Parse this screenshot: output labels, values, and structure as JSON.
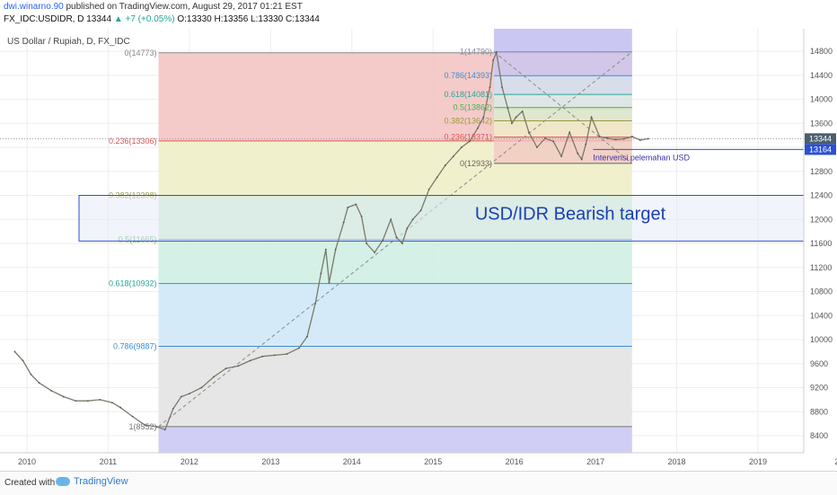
{
  "header": {
    "author": "dwi.winarno.90",
    "published": "published on TradingView.com, August 29, 2017 01:21 EST",
    "symbol_line_prefix": "FX_IDC:USDIDR, D  13344",
    "change": "▲ +7 (+0.05%)",
    "ohlc": "O:13330 H:13356 L:13330 C:13344"
  },
  "footer": {
    "created_with": "Created with",
    "brand": "TradingView"
  },
  "colors": {
    "zone_0_0236": "#f3c5c3",
    "zone_0236_0382": "#eef0c6",
    "zone_0382_05": "#c9ecc9",
    "zone_05_0618": "#cfeee4",
    "zone_0618_0786": "#cfe8f7",
    "zone_0786_1": "#e3e3e3",
    "zone_below": "#cbc9f3",
    "target_box": "#e7ebfa",
    "target_text": "#1a3fb5",
    "price_line": "#7a7a6a",
    "last_price_badge": "#4a5e6e",
    "retr_1_top_zone": "#c7c5f2"
  },
  "chart_data": {
    "type": "line",
    "title": "US Dollar / Rupiah, D, FX_IDC",
    "ylim": [
      8200,
      15000
    ],
    "y_ticks": [
      8400,
      8800,
      9200,
      9600,
      10000,
      10400,
      10800,
      11200,
      11600,
      12000,
      12400,
      12800,
      13200,
      13600,
      14000,
      14400,
      14800
    ],
    "x_ticks": [
      "2010",
      "2011",
      "2012",
      "2013",
      "2014",
      "2015",
      "2016",
      "2017",
      "2018",
      "2019",
      "20"
    ],
    "last_price": 13344,
    "intervention_price": 13164,
    "series": [
      {
        "x": [
          2009.85,
          2009.95,
          2010.05,
          2010.15,
          2010.3,
          2010.45,
          2010.6,
          2010.75,
          2010.9,
          2011.05,
          2011.15,
          2011.3,
          2011.45,
          2011.6,
          2011.7,
          2011.8,
          2011.9,
          2012.0,
          2012.15,
          2012.3,
          2012.45,
          2012.6,
          2012.75,
          2012.9,
          2013.05,
          2013.2,
          2013.35,
          2013.45,
          2013.55,
          2013.62,
          2013.68,
          2013.72,
          2013.8,
          2013.9,
          2013.95,
          2014.05,
          2014.12,
          2014.18,
          2014.28,
          2014.38,
          2014.48,
          2014.55,
          2014.62,
          2014.68,
          2014.75,
          2014.85,
          2014.95,
          2015.05,
          2015.15,
          2015.25,
          2015.35,
          2015.45,
          2015.55,
          2015.62,
          2015.7,
          2015.74,
          2015.78,
          2015.85,
          2015.92,
          2015.97,
          2016.02,
          2016.1,
          2016.18,
          2016.28,
          2016.38,
          2016.48,
          2016.58,
          2016.68,
          2016.78,
          2016.83,
          2016.88,
          2016.95,
          2017.05,
          2017.15,
          2017.25,
          2017.35,
          2017.45,
          2017.55,
          2017.65
        ],
        "y": [
          9800,
          9650,
          9420,
          9280,
          9150,
          9050,
          8980,
          8980,
          9000,
          8950,
          8870,
          8720,
          8580,
          8550,
          8500,
          8850,
          9050,
          9100,
          9200,
          9380,
          9520,
          9560,
          9650,
          9720,
          9740,
          9760,
          9860,
          10050,
          10600,
          11100,
          11500,
          10950,
          11500,
          11950,
          12200,
          12250,
          12050,
          11600,
          11450,
          11650,
          12000,
          11700,
          11600,
          11850,
          12000,
          12150,
          12500,
          12700,
          12900,
          13050,
          13200,
          13300,
          13520,
          13700,
          14200,
          14650,
          14780,
          14200,
          13850,
          13600,
          13700,
          13800,
          13450,
          13200,
          13350,
          13300,
          13050,
          13450,
          13100,
          13000,
          13250,
          13700,
          13380,
          13350,
          13330,
          13340,
          13380,
          13320,
          13344
        ]
      }
    ],
    "fib_levels": [
      {
        "ratio": "0",
        "value": 14773,
        "label": "0(14773)"
      },
      {
        "ratio": "0.236",
        "value": 13306,
        "label": "0.236(13306)"
      },
      {
        "ratio": "0.382",
        "value": 12398,
        "label": "0.382(12398)"
      },
      {
        "ratio": "0.5",
        "value": 11665,
        "label": "0.5(11665)"
      },
      {
        "ratio": "0.618",
        "value": 10932,
        "label": "0.618(10932)"
      },
      {
        "ratio": "0.786",
        "value": 9887,
        "label": "0.786(9887)"
      },
      {
        "ratio": "1",
        "value": 8552,
        "label": "1(8552)"
      }
    ],
    "fib_levels_2": [
      {
        "ratio": "1",
        "value": 14790,
        "label": "1(14790)"
      },
      {
        "ratio": "0.786",
        "value": 14393,
        "label": "0.786(14393)"
      },
      {
        "ratio": "0.618",
        "value": 14081,
        "label": "0.618(14081)"
      },
      {
        "ratio": "0.5",
        "value": 13862,
        "label": "0.5(13862)"
      },
      {
        "ratio": "0.382",
        "value": 13642,
        "label": "0.382(13642)"
      },
      {
        "ratio": "0.236",
        "value": 13371,
        "label": "0.236(13371)"
      },
      {
        "ratio": "0",
        "value": 12933,
        "label": "0(12933)"
      }
    ],
    "target_zone": {
      "top": 12400,
      "bottom": 11640,
      "label": "USD/IDR Bearish target"
    },
    "annotation": "Intervensi pelemahan USD"
  }
}
